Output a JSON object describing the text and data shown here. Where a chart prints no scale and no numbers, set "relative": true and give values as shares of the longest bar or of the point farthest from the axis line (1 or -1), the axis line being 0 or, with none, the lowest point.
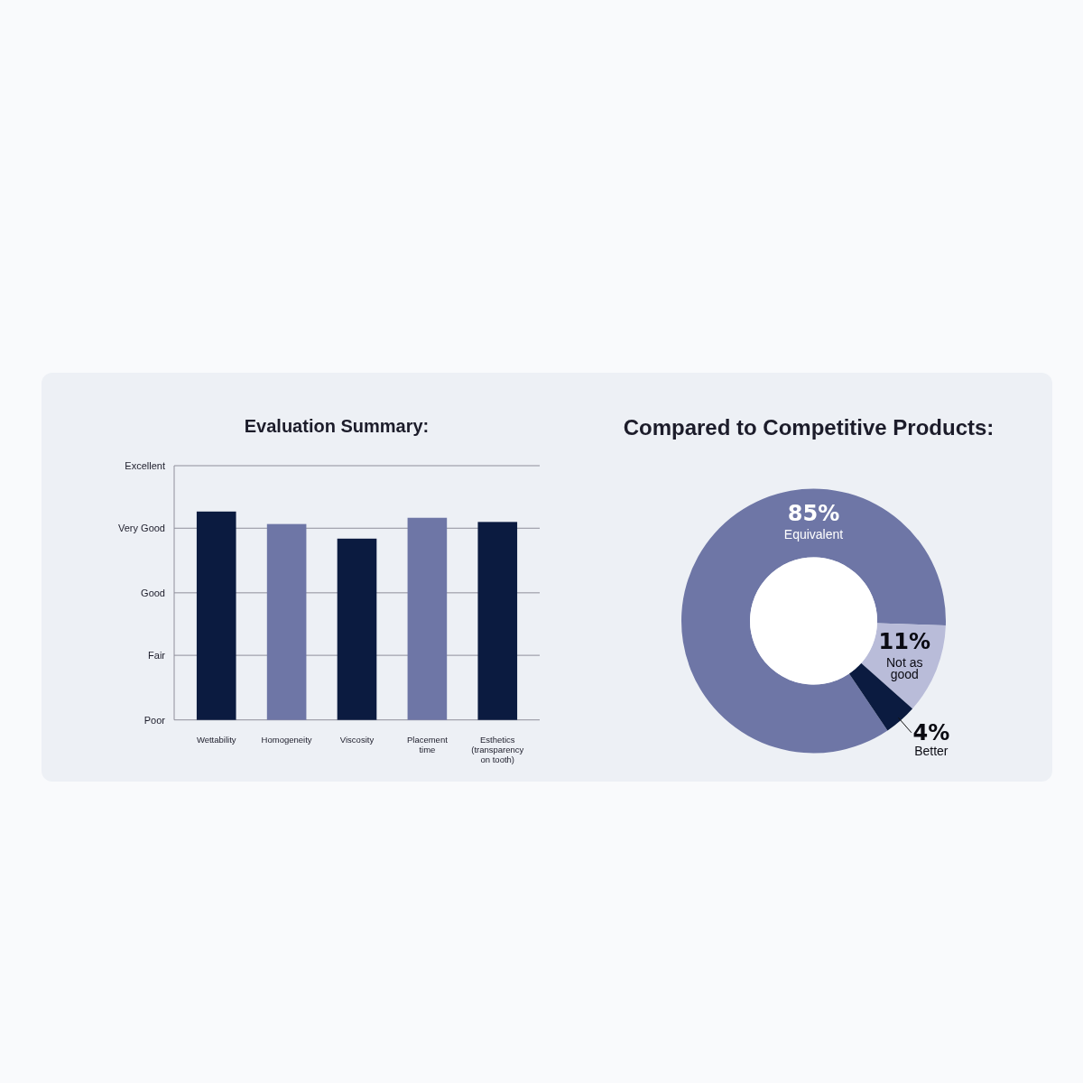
{
  "chart_data": [
    {
      "type": "bar",
      "title": "Evaluation Summary:",
      "categories": [
        "Wettability",
        "Homogeneity",
        "Viscosity",
        "Placement time",
        "Esthetics (transparency on tooth)"
      ],
      "values": [
        1,
        0.94,
        0.87,
        0.97,
        0.95
      ],
      "colors": [
        "#0b1b40",
        "#6e76a6",
        "#0b1b40",
        "#6e76a6",
        "#0b1b40"
      ],
      "relative": true,
      "ref_lines": [
        {
          "axis": "y",
          "value": 0,
          "label": "Poor",
          "color": "#8f8f9b"
        },
        {
          "axis": "y",
          "value": 0.31,
          "label": "Fair",
          "color": "#8f8f9b"
        },
        {
          "axis": "y",
          "value": 0.61,
          "label": "Good",
          "color": "#8f8f9b"
        },
        {
          "axis": "y",
          "value": 0.92,
          "label": "Very Good",
          "color": "#8f8f9b"
        },
        {
          "axis": "y",
          "value": 1.22,
          "label": "Excellent",
          "color": "#8f8f9b"
        }
      ]
    },
    {
      "type": "donut",
      "title": "Compared to Competitive Products:",
      "categories": [
        "Equivalent",
        "Not as good",
        "Better"
      ],
      "values": [
        85,
        11,
        4
      ],
      "colors": [
        "#6e76a6",
        "#b9bcd9",
        "#0b1b40"
      ],
      "value_labels": [
        "85%",
        "11%",
        "4%"
      ]
    }
  ]
}
